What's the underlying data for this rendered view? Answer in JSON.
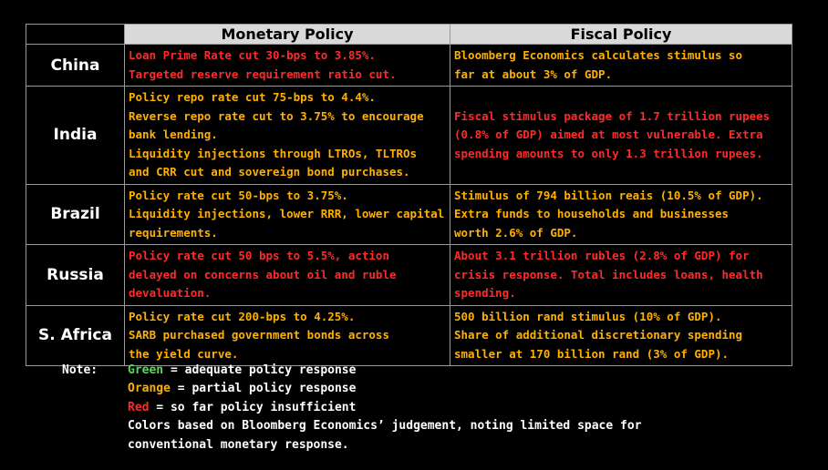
{
  "columns": [
    "Monetary Policy",
    "Fiscal Policy"
  ],
  "colors": {
    "red": "#ff2a2a",
    "orange": "#ffb000",
    "green": "#5cd65c"
  },
  "rows": [
    {
      "country": "China",
      "monetary": {
        "color": "red",
        "lines": [
          "Loan Prime Rate cut 30-bps to 3.85%.",
          "Targeted reserve requirement ratio cut."
        ]
      },
      "fiscal": {
        "color": "orange",
        "lines": [
          "Bloomberg Economics calculates stimulus so",
          "far at about 3% of GDP."
        ]
      }
    },
    {
      "country": "India",
      "monetary": {
        "color": "orange",
        "lines": [
          "Policy repo rate cut 75-bps to 4.4%.",
          "Reverse repo rate cut to 3.75% to encourage",
          "bank lending.",
          "Liquidity injections through LTROs, TLTROs",
          "and CRR cut and sovereign bond purchases."
        ]
      },
      "fiscal": {
        "color": "red",
        "lines": [
          "Fiscal stimulus package of 1.7 trillion rupees",
          "(0.8% of GDP) aimed at most vulnerable. Extra",
          "spending amounts to only 1.3 trillion rupees."
        ]
      }
    },
    {
      "country": "Brazil",
      "monetary": {
        "color": "orange",
        "lines": [
          "Policy rate cut 50-bps to 3.75%.",
          "Liquidity injections, lower RRR, lower capital",
          "requirements."
        ]
      },
      "fiscal": {
        "color": "orange",
        "lines": [
          "Stimulus of 794 billion reais (10.5% of GDP).",
          "Extra funds to households and businesses",
          "worth 2.6% of GDP."
        ]
      }
    },
    {
      "country": "Russia",
      "monetary": {
        "color": "red",
        "lines": [
          "Policy rate cut 50 bps to 5.5%, action",
          "delayed on concerns about oil and ruble",
          "devaluation."
        ]
      },
      "fiscal": {
        "color": "red",
        "lines": [
          "About 3.1 trillion rubles (2.8% of GDP) for",
          "crisis response. Total includes loans, health",
          "spending."
        ]
      }
    },
    {
      "country": "S. Africa",
      "monetary": {
        "color": "orange",
        "lines": [
          "Policy rate cut 200-bps to 4.25%.",
          "SARB purchased government bonds across",
          "the yield curve."
        ]
      },
      "fiscal": {
        "color": "orange",
        "lines": [
          "500 billion rand stimulus (10% of GDP).",
          "Share of additional discretionary spending",
          "smaller at 170 billion rand (3% of GDP)."
        ]
      }
    }
  ],
  "note": {
    "label": "Note:",
    "legend": [
      {
        "color": "green",
        "key": "Green",
        "text": " = adequate policy response"
      },
      {
        "color": "orange",
        "key": "Orange",
        "text": " = partial policy response"
      },
      {
        "color": "red",
        "key": "Red",
        "text": " = so far policy insufficient"
      }
    ],
    "extra": [
      "Colors based on Bloomberg Economics’ judgement, noting limited space for",
      "conventional monetary response."
    ]
  }
}
